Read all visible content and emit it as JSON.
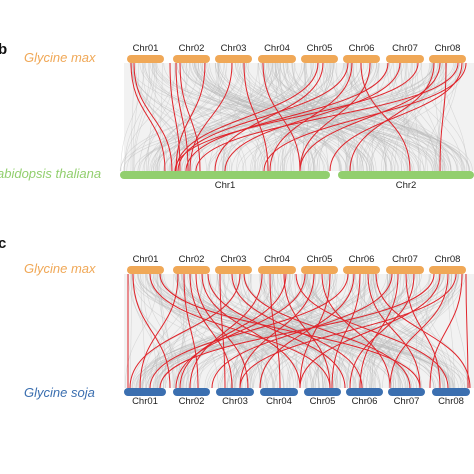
{
  "colors": {
    "gmax": "#f0a857",
    "athal": "#92cf6e",
    "gsoja": "#3b6fb0",
    "red": "#e0242b",
    "gray_link": "#b9b9b9",
    "gray_bg": "#e8e8e8"
  },
  "panel_b": {
    "letter": "b",
    "top_species": "Glycine max",
    "bottom_species": "abidopsis thaliana",
    "top_chromosomes": [
      "Chr01",
      "Chr02",
      "Chr03",
      "Chr04",
      "Chr05",
      "Chr06",
      "Chr07",
      "Chr08"
    ],
    "bottom_chromosomes": [
      "Chr1",
      "Chr2"
    ]
  },
  "panel_c": {
    "letter": "c",
    "top_species": "Glycine max",
    "bottom_species": "Glycine soja",
    "top_chromosomes": [
      "Chr01",
      "Chr02",
      "Chr03",
      "Chr04",
      "Chr05",
      "Chr06",
      "Chr07",
      "Chr08"
    ],
    "bottom_chromosomes": [
      "Chr01",
      "Chr02",
      "Chr03",
      "Chr04",
      "Chr05",
      "Chr06",
      "Chr07",
      "Chr08"
    ]
  }
}
